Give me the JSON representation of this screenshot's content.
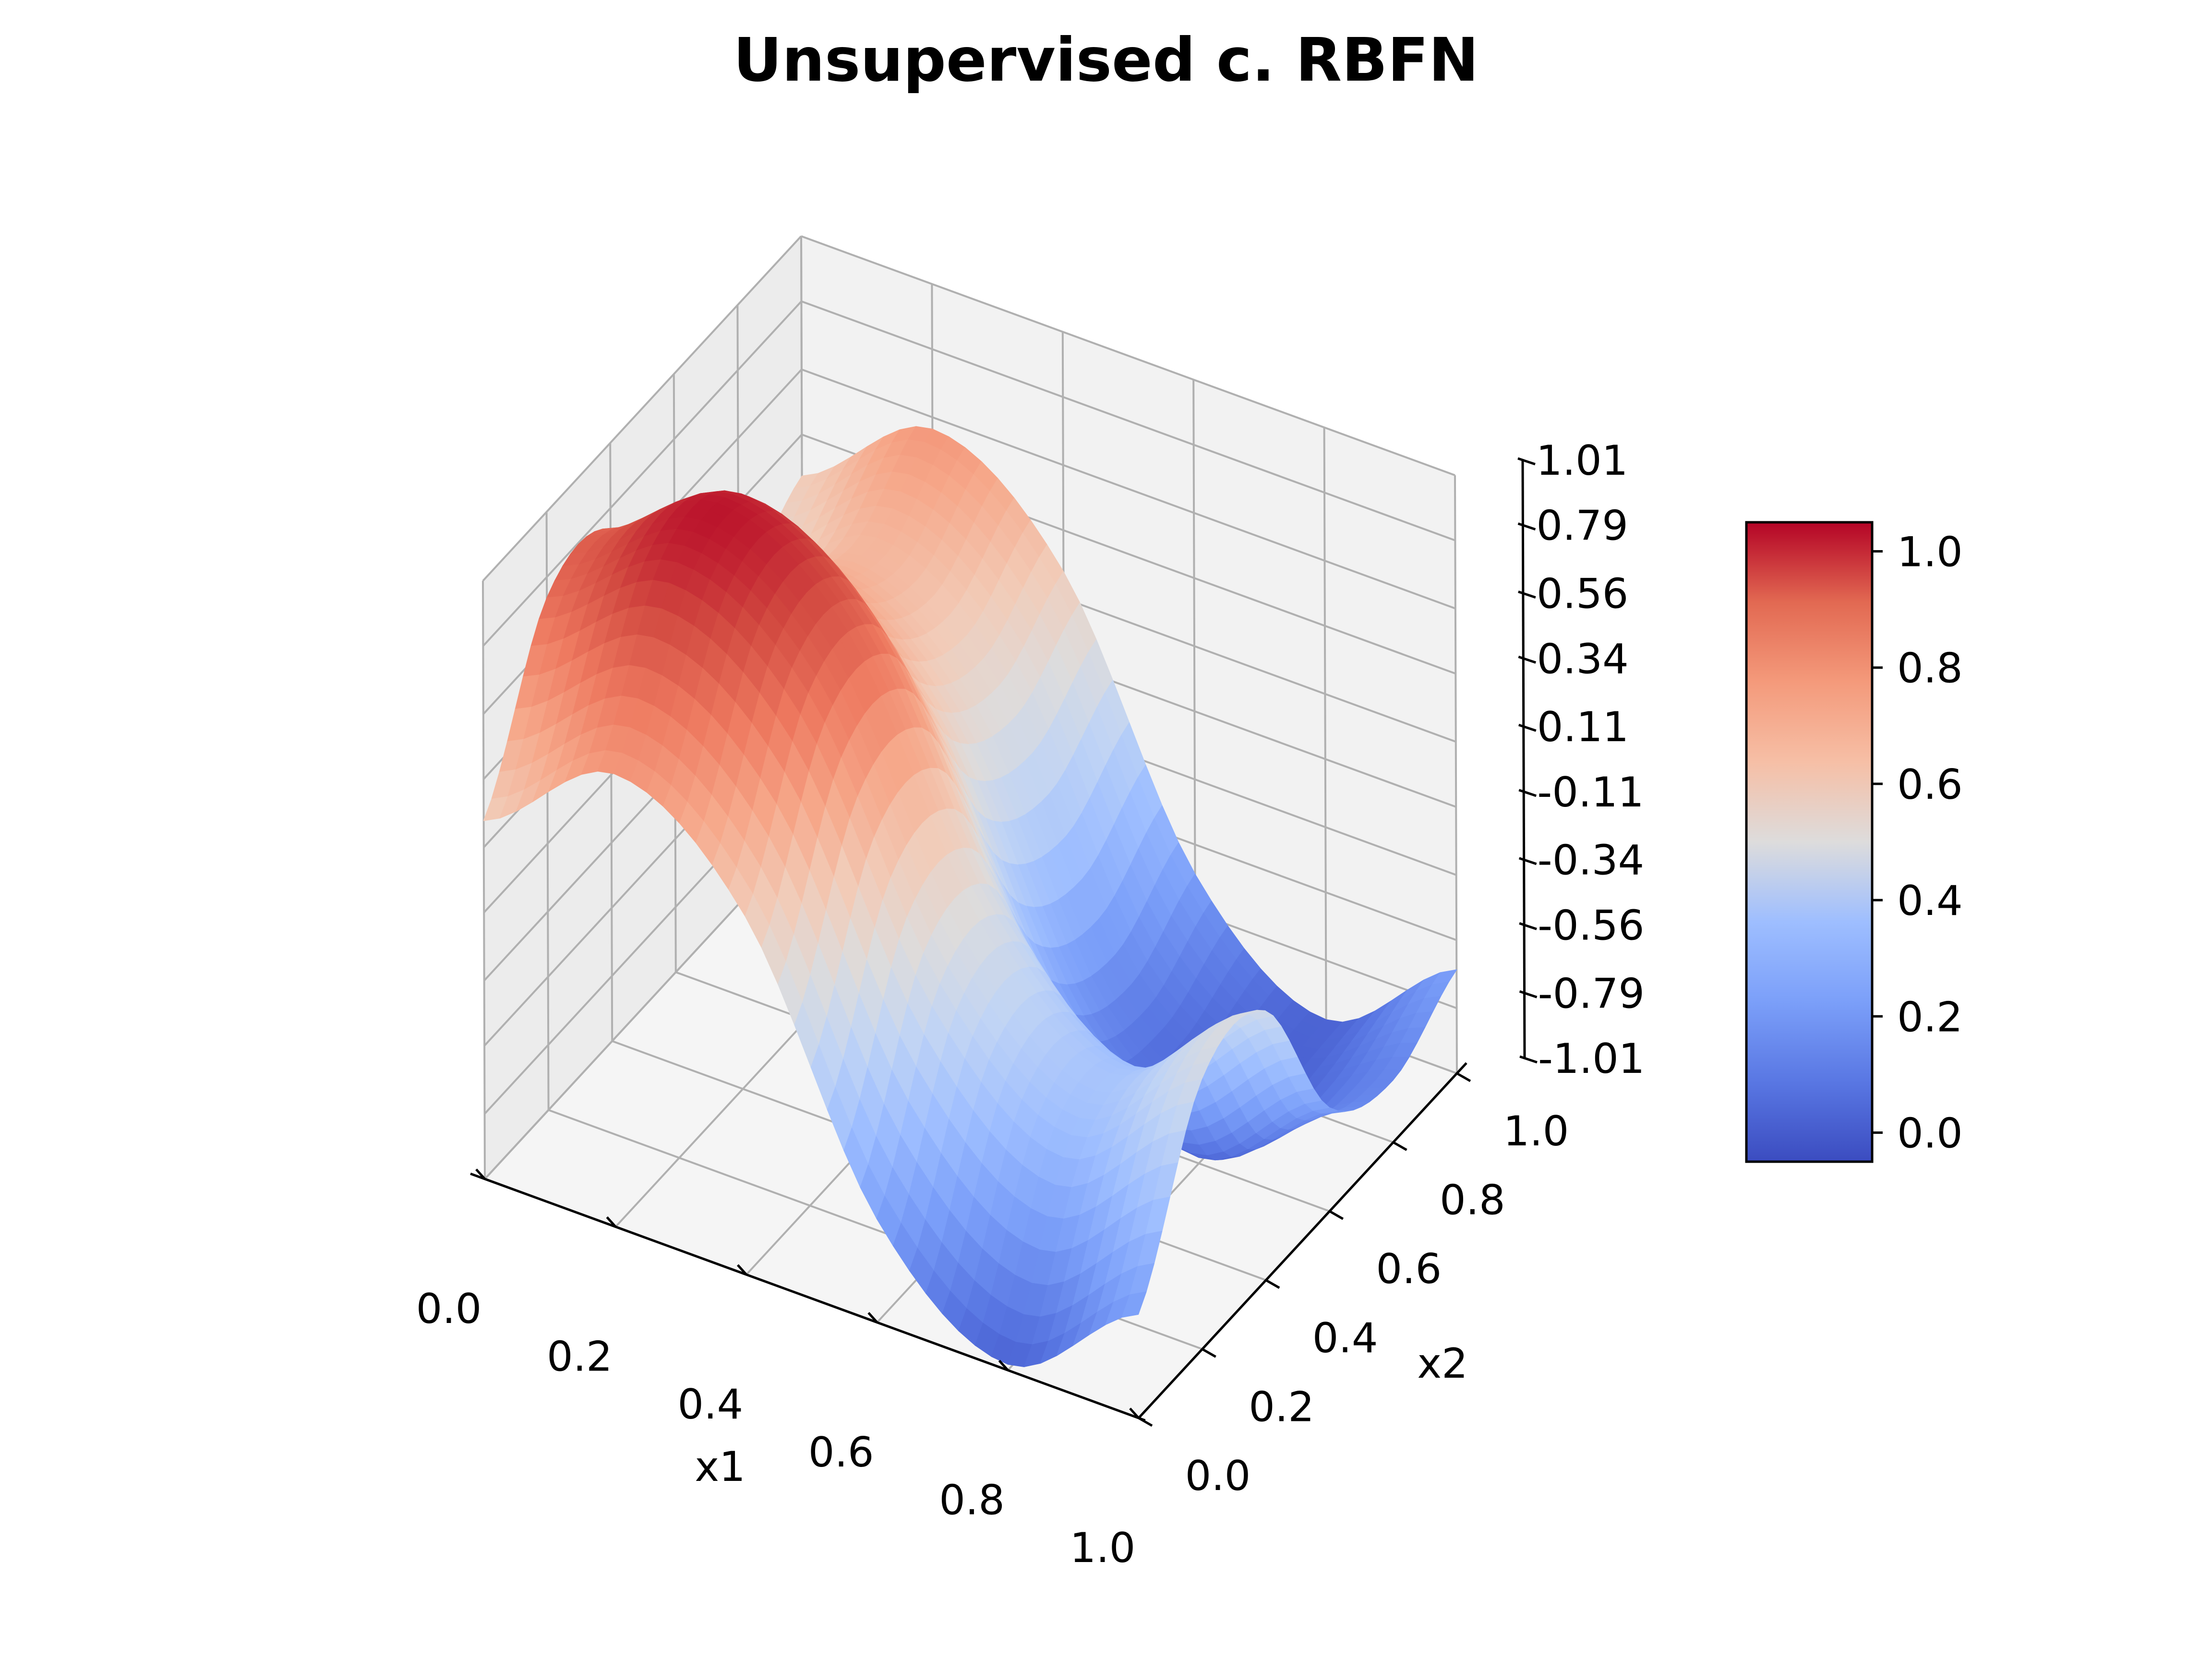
{
  "chart_data": {
    "type": "surface3d",
    "title": "Unsupervised c. RBFN",
    "xlabel": "x1",
    "ylabel": "x2",
    "zlabel": "",
    "x_ticks": [
      "0.0",
      "0.2",
      "0.4",
      "0.6",
      "0.8",
      "1.0"
    ],
    "y_ticks": [
      "0.0",
      "0.2",
      "0.4",
      "0.6",
      "0.8",
      "1.0"
    ],
    "z_ticks": [
      "-1.01",
      "-0.79",
      "-0.56",
      "-0.34",
      "-0.11",
      "0.11",
      "0.34",
      "0.56",
      "0.79",
      "1.01"
    ],
    "xlim": [
      0,
      1
    ],
    "ylim": [
      0,
      1
    ],
    "zlim": [
      -1.01,
      1.01
    ],
    "grid": true,
    "colormap": "coolwarm",
    "colorbar": {
      "ticks": [
        "0.0",
        "0.2",
        "0.4",
        "0.6",
        "0.8",
        "1.0"
      ],
      "range": [
        -0.05,
        1.05
      ],
      "placement": "right"
    },
    "surface": {
      "x": [
        0,
        0.2,
        0.4,
        0.6,
        0.8,
        1.0
      ],
      "y": [
        0,
        0.2,
        0.4,
        0.6,
        0.8,
        1.0
      ],
      "z": [
        [
          0.2,
          0.72,
          0.72,
          0.2,
          0.05,
          0.2
        ],
        [
          0.52,
          1.0,
          1.0,
          0.52,
          0.35,
          0.52
        ],
        [
          0.2,
          0.72,
          0.72,
          0.2,
          0.05,
          0.2
        ],
        [
          -0.66,
          -0.1,
          -0.1,
          -0.66,
          -0.8,
          -0.66
        ],
        [
          -0.99,
          -0.45,
          -0.45,
          -0.99,
          -1.0,
          -0.99
        ],
        [
          -0.66,
          -0.1,
          -0.1,
          -0.66,
          -0.8,
          -0.66
        ]
      ]
    }
  }
}
